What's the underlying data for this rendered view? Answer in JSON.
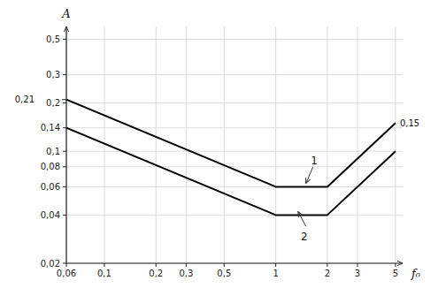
{
  "chart_data": {
    "type": "line",
    "log": true,
    "grid": true,
    "xlabel": "f₀",
    "ylabel": "A",
    "x": [
      0.06,
      1.0,
      2.0,
      5.0
    ],
    "series": [
      {
        "color": "#000000",
        "values": [
          0.21,
          0.06,
          0.06,
          0.15
        ]
      },
      {
        "color": "#000000",
        "values": [
          0.14,
          0.04,
          0.04,
          0.1
        ]
      }
    ],
    "xlim": [
      0.06,
      5.5
    ],
    "ylim": [
      0.02,
      0.6
    ],
    "xticks": [
      {
        "value": 0.06,
        "label": "0,06"
      },
      {
        "value": 0.1,
        "label": "0,1"
      },
      {
        "value": 0.2,
        "label": "0,2"
      },
      {
        "value": 0.3,
        "label": "0,3"
      },
      {
        "value": 0.5,
        "label": "0,5"
      },
      1,
      2,
      3,
      5
    ],
    "yticks": [
      {
        "value": 0.02,
        "label": "0,02"
      },
      {
        "value": 0.04,
        "label": "0,04"
      },
      {
        "value": 0.06,
        "label": "0,06"
      },
      {
        "value": 0.08,
        "label": "0,08"
      },
      {
        "value": 0.1,
        "label": "0,1"
      },
      {
        "value": 0.14,
        "label": "0,14"
      },
      {
        "value": 0.2,
        "label": "0,2"
      },
      {
        "value": 0.3,
        "label": "0,3"
      },
      {
        "value": 0.5,
        "label": "0,5"
      }
    ],
    "annotations": [
      {
        "text": "0,21",
        "x": 0.06,
        "y": 0.21
      },
      {
        "text": "0,15",
        "x": 5.0,
        "y": 0.15
      },
      {
        "text": "1",
        "x": 1.6,
        "y": 0.078,
        "arrow_from": [
          1.65,
          0.08
        ],
        "arrow_to": [
          1.5,
          0.063
        ]
      },
      {
        "text": "2",
        "x": 1.4,
        "y": 0.033,
        "arrow_from": [
          1.5,
          0.034
        ],
        "arrow_to": [
          1.35,
          0.042
        ]
      }
    ]
  }
}
